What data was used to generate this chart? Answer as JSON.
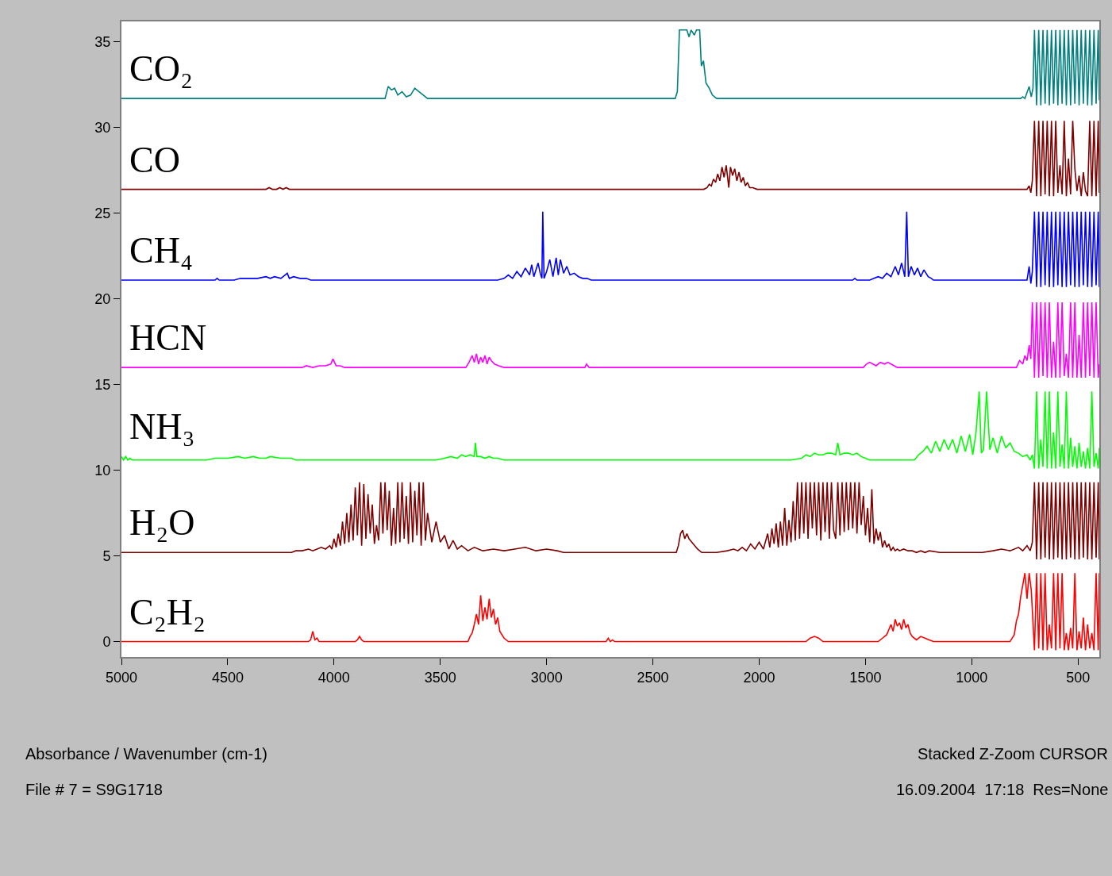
{
  "chart_data": {
    "type": "line",
    "xlim": [
      5000,
      400
    ],
    "ylim": [
      -0.9,
      36.2
    ],
    "xticks": [
      5000,
      4500,
      4000,
      3500,
      3000,
      2500,
      2000,
      1500,
      1000,
      500
    ],
    "yticks": [
      0,
      5,
      10,
      15,
      20,
      25,
      30,
      35
    ],
    "grid": false,
    "legend": false,
    "marker": "none",
    "line_style": "solid",
    "annotations": [
      "Absorbance / Wavenumber (cm-1)",
      "Stacked Z-Zoom CURSOR",
      "File # 7 = S9G1718",
      "16.09.2004  17:18  Res=None"
    ],
    "series": [
      {
        "name": "CO₂",
        "color": "#008080",
        "x": [
          5000,
          3760,
          3745,
          3730,
          3715,
          3700,
          3680,
          3660,
          3640,
          3620,
          3600,
          3580,
          3560,
          2395,
          2385,
          2375,
          2340,
          2330,
          2320,
          2305,
          2295,
          2280,
          2272,
          2262,
          2250,
          2235,
          2220,
          2200,
          770,
          760,
          750,
          730,
          720,
          712,
          705,
          695,
          685,
          675,
          665,
          655,
          645,
          635,
          625,
          615,
          605,
          595,
          585,
          575,
          565,
          555,
          545,
          535,
          525,
          515,
          505,
          495,
          485,
          475,
          465,
          455,
          445,
          435,
          425,
          415,
          405,
          400
        ],
        "values": [
          31.7,
          31.7,
          32.4,
          32.2,
          32.3,
          31.9,
          32.1,
          31.8,
          31.9,
          32.3,
          32.1,
          31.9,
          31.7,
          31.7,
          32.1,
          35.7,
          35.7,
          35.3,
          35.7,
          35.4,
          35.7,
          35.7,
          33.6,
          33.9,
          32.6,
          32.3,
          31.9,
          31.7,
          31.7,
          31.8,
          31.7,
          32.4,
          31.8,
          32.3,
          35.7,
          31.3,
          35.7,
          31.3,
          35.7,
          31.4,
          35.7,
          31.3,
          35.7,
          31.4,
          35.7,
          31.3,
          35.7,
          31.4,
          35.7,
          31.3,
          35.7,
          31.3,
          35.7,
          31.4,
          35.7,
          31.3,
          35.7,
          31.4,
          35.7,
          31.3,
          35.7,
          31.3,
          35.7,
          31.4,
          35.7,
          31.6
        ]
      },
      {
        "name": "CO",
        "color": "#800000",
        "x": [
          5000,
          4320,
          4305,
          4290,
          4270,
          4255,
          4240,
          4225,
          4210,
          2260,
          2245,
          2235,
          2225,
          2215,
          2205,
          2195,
          2185,
          2175,
          2165,
          2155,
          2143,
          2135,
          2125,
          2115,
          2105,
          2095,
          2085,
          2075,
          2065,
          2055,
          2045,
          2030,
          2010,
          740,
          730,
          722,
          715,
          705,
          695,
          685,
          675,
          665,
          655,
          645,
          635,
          625,
          615,
          605,
          595,
          585,
          575,
          565,
          555,
          545,
          535,
          525,
          515,
          505,
          495,
          485,
          475,
          465,
          455,
          445,
          435,
          425,
          415,
          405,
          400
        ],
        "values": [
          26.4,
          26.4,
          26.5,
          26.4,
          26.4,
          26.5,
          26.4,
          26.5,
          26.4,
          26.4,
          26.5,
          26.7,
          26.6,
          27.0,
          26.8,
          27.3,
          26.9,
          27.7,
          27.1,
          27.8,
          26.5,
          27.7,
          27.2,
          27.6,
          26.9,
          27.4,
          26.8,
          27.1,
          26.6,
          26.8,
          26.5,
          26.5,
          26.4,
          26.4,
          26.6,
          26.2,
          26.9,
          30.4,
          26.0,
          30.4,
          26.0,
          30.4,
          26.1,
          30.4,
          26.0,
          30.4,
          26.0,
          30.4,
          26.2,
          27.8,
          26.1,
          30.4,
          26.0,
          28.2,
          26.1,
          30.4,
          27.6,
          26.3,
          27.2,
          26.0,
          27.4,
          26.3,
          26.0,
          30.4,
          26.0,
          30.4,
          26.0,
          30.4,
          26.2
        ]
      },
      {
        "name": "CH₄",
        "color": "#0000ff",
        "x": [
          5000,
          4560,
          4550,
          4540,
          4470,
          4440,
          4400,
          4360,
          4320,
          4300,
          4280,
          4250,
          4230,
          4220,
          4210,
          4190,
          4160,
          4130,
          4110,
          3230,
          3200,
          3180,
          3160,
          3140,
          3120,
          3100,
          3080,
          3070,
          3060,
          3040,
          3030,
          3022,
          3018,
          3012,
          3000,
          2985,
          2970,
          2955,
          2945,
          2935,
          2920,
          2905,
          2890,
          2870,
          2850,
          2830,
          2810,
          2790,
          1560,
          1550,
          1540,
          1480,
          1460,
          1440,
          1420,
          1400,
          1380,
          1360,
          1345,
          1330,
          1315,
          1306,
          1298,
          1285,
          1270,
          1255,
          1240,
          1225,
          1205,
          1190,
          1180,
          740,
          730,
          722,
          715,
          705,
          695,
          685,
          675,
          665,
          655,
          645,
          635,
          625,
          615,
          605,
          595,
          585,
          575,
          565,
          555,
          545,
          535,
          525,
          515,
          505,
          495,
          485,
          475,
          465,
          455,
          445,
          435,
          425,
          415,
          405,
          400
        ],
        "values": [
          21.1,
          21.1,
          21.2,
          21.1,
          21.1,
          21.2,
          21.2,
          21.2,
          21.3,
          21.2,
          21.3,
          21.2,
          21.4,
          21.5,
          21.2,
          21.3,
          21.2,
          21.2,
          21.1,
          21.1,
          21.2,
          21.4,
          21.2,
          21.6,
          21.3,
          21.8,
          21.4,
          22.0,
          21.3,
          22.1,
          21.5,
          21.2,
          25.1,
          21.2,
          21.6,
          22.3,
          21.3,
          22.4,
          21.4,
          22.3,
          21.5,
          21.9,
          21.4,
          21.5,
          21.3,
          21.2,
          21.2,
          21.1,
          21.1,
          21.2,
          21.1,
          21.1,
          21.2,
          21.3,
          21.2,
          21.5,
          21.3,
          21.9,
          21.4,
          22.1,
          21.3,
          25.1,
          21.3,
          21.9,
          21.4,
          21.8,
          21.3,
          21.7,
          21.3,
          21.2,
          21.1,
          21.1,
          21.9,
          20.9,
          21.6,
          25.1,
          20.7,
          25.1,
          20.7,
          25.1,
          20.8,
          25.1,
          20.7,
          25.1,
          20.7,
          25.1,
          20.8,
          25.1,
          20.7,
          25.1,
          20.7,
          25.1,
          20.8,
          25.1,
          20.7,
          25.1,
          20.7,
          25.1,
          20.8,
          25.1,
          20.7,
          25.1,
          20.7,
          25.1,
          20.8,
          25.1,
          20.7
        ]
      },
      {
        "name": "HCN",
        "color": "#ff00ff",
        "x": [
          5000,
          4150,
          4130,
          4100,
          4070,
          4040,
          4015,
          4005,
          3990,
          3970,
          3950,
          3380,
          3365,
          3350,
          3340,
          3330,
          3320,
          3310,
          3300,
          3290,
          3280,
          3270,
          3260,
          3245,
          3225,
          3200,
          2820,
          2812,
          2800,
          1510,
          1495,
          1480,
          1465,
          1450,
          1430,
          1410,
          1395,
          1380,
          1365,
          1350,
          790,
          775,
          760,
          750,
          740,
          730,
          722,
          715,
          705,
          695,
          685,
          675,
          665,
          655,
          645,
          635,
          625,
          615,
          605,
          595,
          585,
          575,
          565,
          555,
          545,
          535,
          525,
          515,
          505,
          495,
          485,
          475,
          465,
          455,
          445,
          435,
          425,
          415,
          405,
          400
        ],
        "values": [
          16.0,
          16.0,
          16.1,
          16.0,
          16.1,
          16.1,
          16.2,
          16.5,
          16.1,
          16.1,
          16.0,
          16.0,
          16.3,
          16.7,
          16.3,
          16.8,
          16.2,
          16.6,
          16.3,
          16.7,
          16.2,
          16.6,
          16.4,
          16.2,
          16.1,
          16.0,
          16.0,
          16.2,
          16.0,
          16.0,
          16.2,
          16.3,
          16.2,
          16.1,
          16.3,
          16.2,
          16.3,
          16.2,
          16.1,
          16.0,
          16.0,
          16.4,
          16.2,
          16.7,
          16.4,
          17.3,
          16.5,
          19.8,
          15.4,
          19.8,
          15.4,
          19.8,
          15.5,
          19.8,
          15.4,
          19.8,
          15.4,
          17.5,
          15.4,
          19.8,
          15.4,
          19.8,
          15.5,
          16.8,
          15.4,
          19.8,
          15.4,
          19.8,
          15.4,
          17.9,
          15.4,
          19.8,
          15.4,
          19.8,
          15.5,
          19.8,
          15.4,
          19.8,
          15.4,
          16.2
        ]
      },
      {
        "name": "NH₃",
        "color": "#00ff00",
        "x": [
          5000,
          4990,
          4980,
          4970,
          4960,
          4950,
          4940,
          4600,
          4560,
          4500,
          4450,
          4420,
          4380,
          4350,
          4320,
          4300,
          4250,
          4200,
          4180,
          4160,
          3520,
          3480,
          3450,
          3420,
          3400,
          3380,
          3360,
          3340,
          3335,
          3328,
          3310,
          3290,
          3270,
          3250,
          3230,
          3200,
          3150,
          1850,
          1800,
          1780,
          1760,
          1740,
          1720,
          1700,
          1680,
          1660,
          1640,
          1630,
          1620,
          1600,
          1580,
          1560,
          1540,
          1520,
          1500,
          1480,
          1450,
          1270,
          1250,
          1230,
          1210,
          1190,
          1170,
          1150,
          1130,
          1110,
          1090,
          1070,
          1050,
          1030,
          1010,
          995,
          980,
          965,
          955,
          945,
          930,
          915,
          900,
          880,
          860,
          840,
          820,
          800,
          780,
          760,
          740,
          725,
          715,
          705,
          695,
          685,
          675,
          665,
          655,
          645,
          635,
          625,
          615,
          605,
          595,
          585,
          575,
          565,
          555,
          545,
          535,
          525,
          515,
          505,
          495,
          485,
          475,
          465,
          455,
          445,
          435,
          425,
          415,
          405,
          400
        ],
        "values": [
          10.8,
          10.6,
          10.8,
          10.6,
          10.7,
          10.6,
          10.6,
          10.6,
          10.7,
          10.7,
          10.8,
          10.7,
          10.8,
          10.7,
          10.7,
          10.8,
          10.7,
          10.7,
          10.6,
          10.6,
          10.6,
          10.7,
          10.8,
          10.7,
          10.9,
          10.8,
          10.9,
          10.8,
          11.6,
          10.8,
          10.8,
          10.7,
          10.8,
          10.7,
          10.7,
          10.6,
          10.6,
          10.6,
          10.7,
          10.9,
          10.8,
          11.0,
          10.9,
          10.9,
          11.0,
          11.0,
          10.9,
          11.6,
          10.9,
          11.0,
          11.0,
          10.9,
          11.0,
          10.8,
          10.7,
          10.6,
          10.6,
          10.6,
          10.9,
          11.1,
          11.4,
          11.0,
          11.7,
          11.1,
          11.8,
          11.2,
          11.8,
          11.0,
          12.0,
          11.1,
          12.1,
          10.9,
          12.2,
          14.6,
          11.0,
          11.2,
          14.6,
          11.2,
          11.9,
          11.0,
          12.0,
          11.3,
          11.6,
          11.1,
          11.0,
          10.8,
          10.9,
          10.6,
          10.9,
          10.1,
          14.6,
          10.1,
          11.8,
          10.2,
          14.6,
          10.1,
          14.6,
          10.1,
          12.2,
          10.1,
          14.6,
          10.2,
          11.5,
          10.1,
          14.6,
          10.1,
          11.9,
          10.2,
          11.4,
          10.1,
          11.6,
          10.2,
          11.1,
          10.1,
          11.3,
          10.1,
          14.6,
          10.2,
          11.0,
          10.1,
          11.3
        ]
      },
      {
        "name": "H₂O",
        "color": "#800000",
        "x": [
          5000,
          4200,
          4180,
          4150,
          4120,
          4100,
          4080,
          4060,
          4040,
          4020,
          4010,
          4000,
          3990,
          3980,
          3970,
          3960,
          3950,
          3940,
          3930,
          3920,
          3910,
          3900,
          3890,
          3880,
          3870,
          3860,
          3850,
          3840,
          3830,
          3820,
          3810,
          3800,
          3790,
          3780,
          3770,
          3760,
          3750,
          3740,
          3730,
          3720,
          3710,
          3700,
          3690,
          3680,
          3670,
          3660,
          3650,
          3640,
          3630,
          3620,
          3610,
          3600,
          3590,
          3580,
          3570,
          3560,
          3540,
          3520,
          3500,
          3480,
          3460,
          3440,
          3420,
          3400,
          3370,
          3340,
          3300,
          3250,
          3200,
          3150,
          3100,
          3050,
          3000,
          2950,
          2920,
          2390,
          2380,
          2370,
          2360,
          2350,
          2340,
          2330,
          2310,
          2290,
          2270,
          2200,
          2150,
          2120,
          2100,
          2080,
          2060,
          2040,
          2020,
          2000,
          1980,
          1960,
          1950,
          1940,
          1930,
          1920,
          1910,
          1900,
          1890,
          1880,
          1870,
          1860,
          1850,
          1840,
          1830,
          1820,
          1810,
          1800,
          1790,
          1780,
          1770,
          1760,
          1750,
          1740,
          1730,
          1720,
          1710,
          1700,
          1690,
          1680,
          1670,
          1660,
          1650,
          1640,
          1630,
          1620,
          1610,
          1600,
          1590,
          1580,
          1570,
          1560,
          1550,
          1540,
          1530,
          1520,
          1510,
          1500,
          1490,
          1480,
          1470,
          1460,
          1450,
          1440,
          1430,
          1420,
          1410,
          1400,
          1390,
          1380,
          1370,
          1360,
          1350,
          1340,
          1320,
          1300,
          1280,
          1260,
          1240,
          1220,
          1200,
          1150,
          1100,
          950,
          900,
          860,
          820,
          780,
          760,
          740,
          725,
          715,
          705,
          695,
          685,
          675,
          665,
          655,
          645,
          635,
          625,
          615,
          605,
          595,
          585,
          575,
          565,
          555,
          545,
          535,
          525,
          515,
          505,
          495,
          485,
          475,
          465,
          455,
          445,
          435,
          425,
          415,
          405,
          400
        ],
        "values": [
          5.2,
          5.2,
          5.3,
          5.3,
          5.4,
          5.3,
          5.4,
          5.5,
          5.4,
          5.6,
          5.4,
          6.0,
          5.5,
          6.3,
          5.6,
          7.0,
          5.7,
          7.5,
          5.8,
          8.0,
          5.9,
          9.0,
          6.2,
          9.3,
          5.6,
          9.2,
          6.0,
          8.6,
          6.3,
          8.0,
          5.7,
          6.8,
          5.9,
          9.3,
          6.3,
          9.3,
          6.5,
          8.8,
          5.6,
          7.8,
          5.7,
          9.3,
          5.8,
          9.3,
          6.0,
          8.5,
          5.7,
          9.3,
          5.8,
          8.8,
          6.2,
          9.3,
          5.6,
          9.3,
          5.9,
          7.5,
          5.8,
          7.0,
          5.8,
          6.2,
          5.4,
          5.9,
          5.4,
          5.6,
          5.3,
          5.5,
          5.3,
          5.4,
          5.3,
          5.4,
          5.5,
          5.3,
          5.4,
          5.3,
          5.2,
          5.2,
          5.6,
          6.3,
          6.5,
          6.0,
          6.3,
          6.0,
          5.7,
          5.4,
          5.2,
          5.2,
          5.3,
          5.4,
          5.3,
          5.5,
          5.3,
          5.7,
          5.4,
          5.8,
          5.4,
          6.3,
          5.5,
          6.6,
          5.7,
          6.9,
          5.5,
          7.0,
          5.6,
          7.8,
          5.6,
          7.1,
          5.8,
          8.2,
          5.9,
          9.3,
          6.0,
          9.3,
          6.3,
          9.3,
          6.0,
          9.3,
          6.6,
          9.3,
          6.2,
          9.3,
          5.9,
          9.3,
          6.4,
          9.3,
          6.0,
          9.3,
          6.5,
          6.0,
          9.3,
          6.2,
          9.3,
          6.4,
          9.3,
          6.5,
          9.3,
          6.6,
          9.3,
          6.3,
          9.3,
          6.8,
          8.5,
          6.2,
          7.8,
          5.8,
          8.9,
          5.7,
          6.6,
          5.9,
          6.4,
          5.5,
          5.9,
          5.5,
          5.7,
          5.3,
          5.5,
          5.3,
          5.4,
          5.3,
          5.4,
          5.3,
          5.3,
          5.2,
          5.3,
          5.2,
          5.3,
          5.2,
          5.2,
          5.2,
          5.3,
          5.4,
          5.3,
          5.5,
          5.3,
          5.6,
          5.3,
          5.8,
          9.3,
          4.8,
          9.3,
          4.8,
          9.3,
          4.9,
          9.3,
          4.8,
          9.3,
          4.8,
          9.3,
          4.9,
          9.3,
          4.8,
          9.3,
          4.8,
          9.3,
          4.9,
          9.3,
          4.8,
          9.3,
          4.8,
          9.3,
          4.9,
          9.3,
          4.8,
          9.3,
          4.8,
          9.3,
          4.9,
          9.3,
          4.8
        ]
      },
      {
        "name": "C₂H₂",
        "color": "#ff0000",
        "x": [
          5000,
          4120,
          4110,
          4100,
          4090,
          4080,
          4070,
          3900,
          3890,
          3880,
          3870,
          3860,
          3370,
          3360,
          3350,
          3340,
          3330,
          3320,
          3310,
          3300,
          3290,
          3280,
          3270,
          3260,
          3250,
          3240,
          3230,
          3220,
          3200,
          3180,
          2720,
          2710,
          2700,
          2690,
          2680,
          2660,
          1780,
          1760,
          1740,
          1720,
          1700,
          1440,
          1420,
          1400,
          1390,
          1380,
          1370,
          1360,
          1350,
          1340,
          1330,
          1320,
          1310,
          1300,
          1290,
          1280,
          1260,
          1240,
          1220,
          1200,
          1180,
          820,
          800,
          790,
          780,
          770,
          760,
          750,
          740,
          730,
          720,
          705,
          695,
          685,
          675,
          665,
          655,
          645,
          635,
          625,
          615,
          605,
          595,
          585,
          575,
          565,
          555,
          545,
          535,
          525,
          515,
          505,
          495,
          485,
          475,
          465,
          455,
          445,
          435,
          425,
          415,
          405,
          400
        ],
        "values": [
          0,
          0,
          0.1,
          0.6,
          0.1,
          0.2,
          0,
          0,
          0.1,
          0.3,
          0.1,
          0,
          0,
          0.3,
          0.5,
          1.0,
          1.6,
          1.0,
          2.7,
          1.2,
          2.0,
          1.3,
          2.5,
          1.4,
          1.9,
          1.0,
          1.4,
          0.6,
          0.2,
          0,
          0,
          0.2,
          0,
          0.1,
          0,
          0,
          0,
          0.2,
          0.3,
          0.2,
          0,
          0,
          0.2,
          0.4,
          0.7,
          1.0,
          0.6,
          1.3,
          0.9,
          1.1,
          0.7,
          1.3,
          0.8,
          1.0,
          0.5,
          0.3,
          0.1,
          0.3,
          0.2,
          0.1,
          0,
          0,
          0.4,
          1.2,
          1.6,
          2.6,
          3.3,
          4.0,
          2.5,
          4.0,
          3.0,
          -0.5,
          4.0,
          -0.4,
          4.0,
          -0.5,
          4.0,
          -0.5,
          1.0,
          -0.4,
          4.0,
          -0.5,
          4.0,
          -0.4,
          4.0,
          -0.5,
          0.5,
          -0.5,
          0.8,
          -0.4,
          4.0,
          -0.5,
          0.6,
          -0.4,
          1.4,
          -0.5,
          1.0,
          -0.4,
          0.5,
          -0.5,
          4.0,
          -0.5,
          4.0
        ]
      }
    ]
  }
}
